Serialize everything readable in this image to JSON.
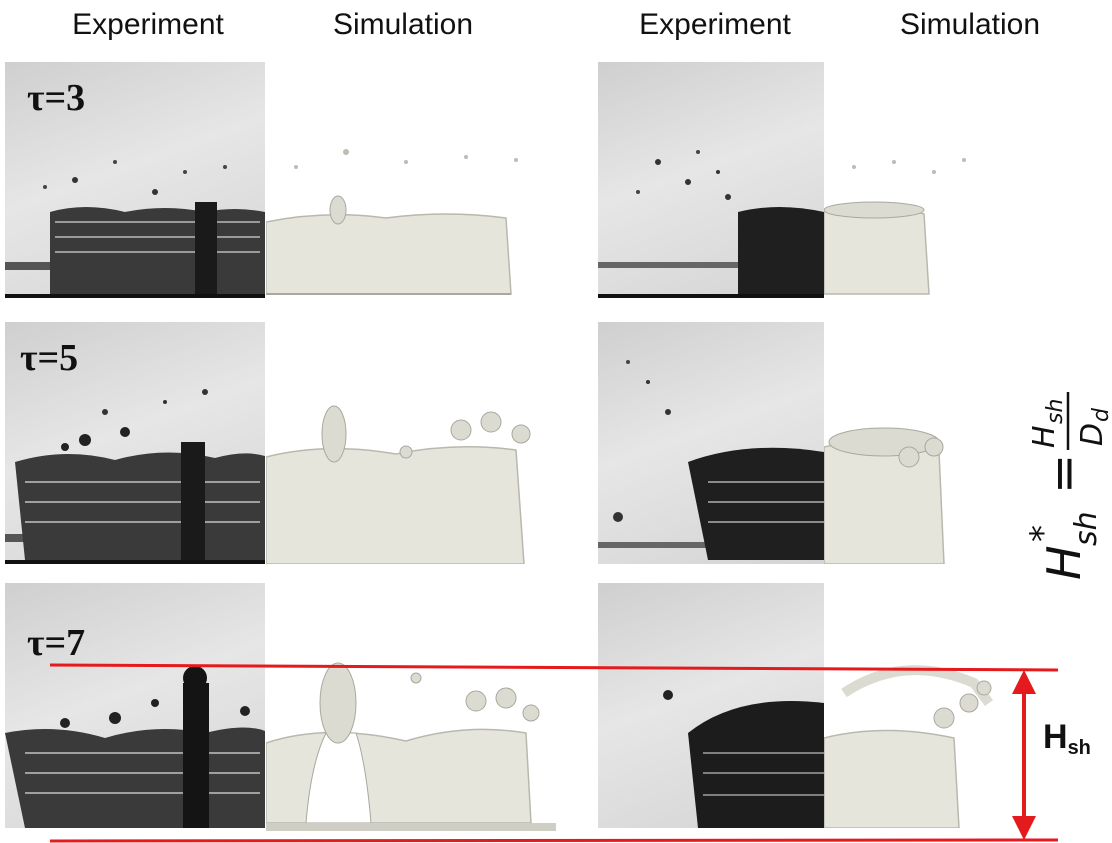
{
  "headers": {
    "left_experiment": "Experiment",
    "left_simulation": "Simulation",
    "right_experiment": "Experiment",
    "right_simulation": "Simulation"
  },
  "rows": [
    {
      "tau_label": "τ=3"
    },
    {
      "tau_label": "τ=5"
    },
    {
      "tau_label": "τ=7"
    }
  ],
  "formula": {
    "lhs": "H",
    "lhs_sub": "sh",
    "lhs_sup": "*",
    "equals": "=",
    "numerator": "H",
    "numerator_sub": "sh",
    "denominator": "D",
    "denominator_sub": "d"
  },
  "height_label": {
    "main": "H",
    "sub": "sh"
  },
  "colors": {
    "measure_line": "#e41a1c",
    "fluid_sim": "#e9e8df",
    "fluid_exp": "#2a2a2a"
  }
}
